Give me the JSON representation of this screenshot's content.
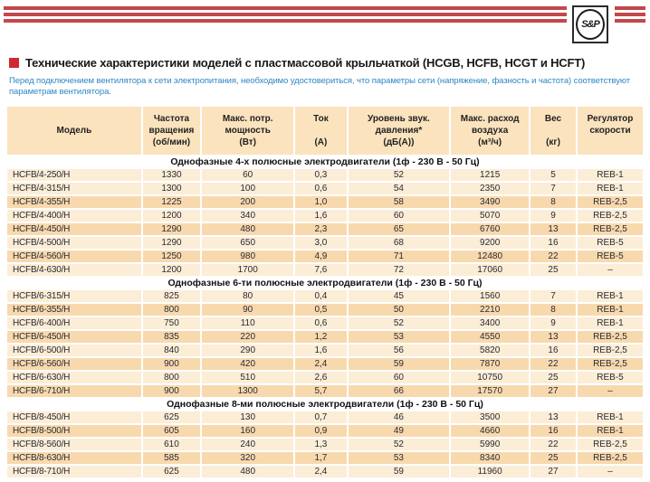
{
  "logo": {
    "text": "S&P"
  },
  "header": {
    "title": "Технические характеристики моделей с пластмассовой крыльчаткой (HCGB, HCFB, HCGT и HCFT)",
    "subtitle": "Перед подключением вентилятора к сети электропитания, необходимо удостовериться, что параметры сети (напряжение, фазность и частота) соответствуют параметрам вентилятора."
  },
  "table": {
    "columns": [
      {
        "lines": [
          "Модель"
        ]
      },
      {
        "lines": [
          "Частота",
          "вращения",
          "(об/мин)"
        ]
      },
      {
        "lines": [
          "Макс. потр.",
          "мощность",
          "(Вт)"
        ]
      },
      {
        "lines": [
          "Ток",
          "",
          "(А)"
        ]
      },
      {
        "lines": [
          "Уровень звук.",
          "давления*",
          "(дБ(А))"
        ]
      },
      {
        "lines": [
          "Макс. расход",
          "воздуха",
          "(м³/ч)"
        ]
      },
      {
        "lines": [
          "Вес",
          "",
          "(кг)"
        ]
      },
      {
        "lines": [
          "Регулятор",
          "скорости",
          ""
        ]
      }
    ],
    "sections": [
      {
        "title": "Однофазные 4-х полюсные электродвигатели (1ф - 230 В - 50 Гц)",
        "rows": [
          [
            "HCFB/4-250/H",
            "1330",
            "60",
            "0,3",
            "52",
            "1215",
            "5",
            "REB-1"
          ],
          [
            "HCFB/4-315/H",
            "1300",
            "100",
            "0,6",
            "54",
            "2350",
            "7",
            "REB-1"
          ],
          [
            "HCFB/4-355/H",
            "1225",
            "200",
            "1,0",
            "58",
            "3490",
            "8",
            "REB-2,5"
          ],
          [
            "HCFB/4-400/H",
            "1200",
            "340",
            "1,6",
            "60",
            "5070",
            "9",
            "REB-2,5"
          ],
          [
            "HCFB/4-450/H",
            "1290",
            "480",
            "2,3",
            "65",
            "6760",
            "13",
            "REB-2,5"
          ],
          [
            "HCFB/4-500/H",
            "1290",
            "650",
            "3,0",
            "68",
            "9200",
            "16",
            "REB-5"
          ],
          [
            "HCFB/4-560/H",
            "1250",
            "980",
            "4,9",
            "71",
            "12480",
            "22",
            "REB-5"
          ],
          [
            "HCFB/4-630/H",
            "1200",
            "1700",
            "7,6",
            "72",
            "17060",
            "25",
            "–"
          ]
        ]
      },
      {
        "title": "Однофазные 6-ти полюсные электродвигатели (1ф - 230 В - 50 Гц)",
        "rows": [
          [
            "HCFB/6-315/H",
            "825",
            "80",
            "0,4",
            "45",
            "1560",
            "7",
            "REB-1"
          ],
          [
            "HCFB/6-355/H",
            "800",
            "90",
            "0,5",
            "50",
            "2210",
            "8",
            "REB-1"
          ],
          [
            "HCFB/6-400/H",
            "750",
            "110",
            "0,6",
            "52",
            "3400",
            "9",
            "REB-1"
          ],
          [
            "HCFB/6-450/H",
            "835",
            "220",
            "1,2",
            "53",
            "4550",
            "13",
            "REB-2,5"
          ],
          [
            "HCFB/6-500/H",
            "840",
            "290",
            "1,6",
            "56",
            "5820",
            "16",
            "REB-2,5"
          ],
          [
            "HCFB/6-560/H",
            "900",
            "420",
            "2,4",
            "59",
            "7870",
            "22",
            "REB-2,5"
          ],
          [
            "HCFB/6-630/H",
            "800",
            "510",
            "2,6",
            "60",
            "10750",
            "25",
            "REB-5"
          ],
          [
            "HCFB/6-710/H",
            "900",
            "1300",
            "5,7",
            "66",
            "17570",
            "27",
            "–"
          ]
        ]
      },
      {
        "title": "Однофазные 8-ми полюсные электродвигатели (1ф - 230 В - 50 Гц)",
        "rows": [
          [
            "HCFB/8-450/H",
            "625",
            "130",
            "0,7",
            "46",
            "3500",
            "13",
            "REB-1"
          ],
          [
            "HCFB/8-500/H",
            "605",
            "160",
            "0,9",
            "49",
            "4660",
            "16",
            "REB-1"
          ],
          [
            "HCFB/8-560/H",
            "610",
            "240",
            "1,3",
            "52",
            "5990",
            "22",
            "REB-2,5"
          ],
          [
            "HCFB/8-630/H",
            "585",
            "320",
            "1,7",
            "53",
            "8340",
            "25",
            "REB-2,5"
          ],
          [
            "HCFB/8-710/H",
            "625",
            "480",
            "2,4",
            "59",
            "11960",
            "27",
            "–"
          ]
        ]
      }
    ]
  },
  "colors": {
    "stripe_red": "#C4474C",
    "bullet_red": "#CE2A30",
    "subtitle_blue": "#2E86C5",
    "table_header_bg": "#FBE3BE",
    "row_light": "#FCEDD6",
    "row_dark": "#F8D9AE"
  }
}
